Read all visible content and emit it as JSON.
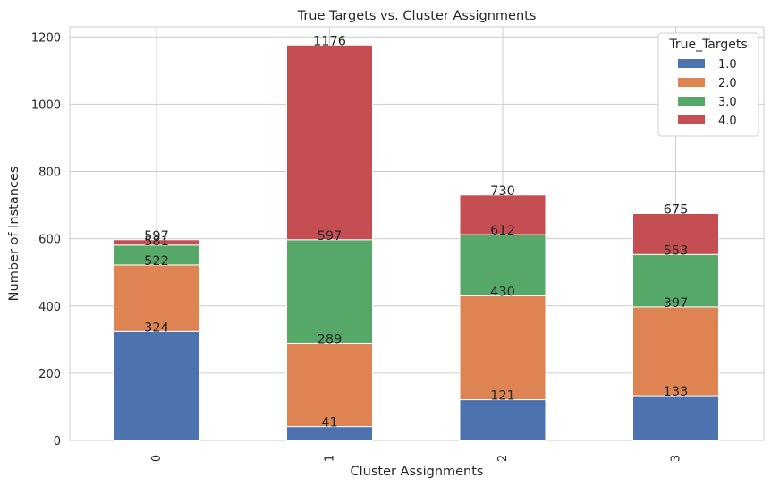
{
  "chart_data": {
    "type": "bar",
    "stacked": true,
    "title": "True Targets vs. Cluster Assignments",
    "xlabel": "Cluster Assignments",
    "ylabel": "Number of Instances",
    "categories": [
      "0",
      "1",
      "2",
      "3"
    ],
    "ylim": [
      0,
      1230
    ],
    "yticks": [
      0,
      200,
      400,
      600,
      800,
      1000,
      1200
    ],
    "grid": true,
    "legend": {
      "title": "True_Targets",
      "placement": "top-right"
    },
    "series": [
      {
        "name": "1.0",
        "color": "#4c72b0",
        "values": [
          324,
          41,
          121,
          133
        ]
      },
      {
        "name": "2.0",
        "color": "#dd8452",
        "values": [
          198,
          248,
          309,
          264
        ]
      },
      {
        "name": "3.0",
        "color": "#55a868",
        "values": [
          59,
          308,
          182,
          156
        ]
      },
      {
        "name": "4.0",
        "color": "#c44e52",
        "values": [
          16,
          579,
          118,
          122
        ]
      }
    ],
    "data_labels": [
      [
        "324",
        "41",
        "121",
        "133"
      ],
      [
        "522",
        "289",
        "430",
        "397"
      ],
      [
        "581",
        "597",
        "612",
        "553"
      ],
      [
        "597",
        "1176",
        "730",
        "675"
      ]
    ]
  }
}
